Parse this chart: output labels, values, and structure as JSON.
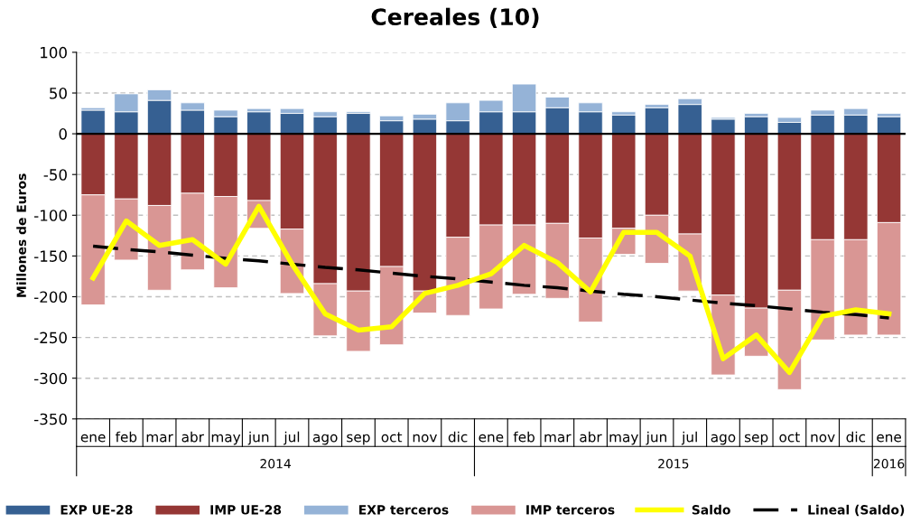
{
  "chart_data": {
    "type": "bar",
    "title": "Cereales (10)",
    "ylabel": "Millones de Euros",
    "categories": [
      "ene",
      "feb",
      "mar",
      "abr",
      "may",
      "jun",
      "jul",
      "ago",
      "sep",
      "oct",
      "nov",
      "dic",
      "ene",
      "feb",
      "mar",
      "abr",
      "may",
      "jun",
      "jul",
      "ago",
      "sep",
      "oct",
      "nov",
      "dic",
      "ene"
    ],
    "annotations": [
      "2014",
      "2015",
      "2016"
    ],
    "stacked": true,
    "ylim": [
      -350,
      100
    ],
    "yticks": [
      -350,
      -300,
      -250,
      -200,
      -150,
      -100,
      -50,
      0,
      50,
      100
    ],
    "grid": "y",
    "legend": "bottom",
    "series": [
      {
        "name": "EXP UE-28",
        "color": "#366092",
        "values": [
          29,
          27,
          41,
          29,
          21,
          27,
          25,
          21,
          25,
          16,
          18,
          16,
          27,
          27,
          32,
          27,
          23,
          32,
          36,
          18,
          21,
          14,
          23,
          23,
          21
        ]
      },
      {
        "name": "IMP UE-28",
        "color": "#953735",
        "values": [
          -75,
          -80,
          -88,
          -73,
          -77,
          -82,
          -117,
          -184,
          -193,
          -163,
          -193,
          -127,
          -112,
          -112,
          -110,
          -128,
          -116,
          -100,
          -123,
          -198,
          -214,
          -192,
          -130,
          -130,
          -109
        ]
      },
      {
        "name": "EXP terceros",
        "color": "#95b3d7",
        "values": [
          3,
          22,
          13,
          9,
          8,
          4,
          6,
          6,
          2,
          6,
          6,
          22,
          14,
          34,
          13,
          11,
          4,
          4,
          7,
          2,
          4,
          6,
          6,
          8,
          4
        ]
      },
      {
        "name": "IMP terceros",
        "color": "#d99694",
        "values": [
          -135,
          -75,
          -104,
          -94,
          -112,
          -34,
          -79,
          -64,
          -74,
          -96,
          -27,
          -96,
          -103,
          -85,
          -92,
          -103,
          -32,
          -59,
          -70,
          -98,
          -59,
          -122,
          -123,
          -117,
          -138
        ]
      },
      {
        "name": "Saldo",
        "type": "line",
        "color": "#ffff00",
        "line_style": "solid",
        "values": [
          -177,
          -107,
          -137,
          -130,
          -160,
          -89,
          -160,
          -221,
          -241,
          -237,
          -196,
          -186,
          -172,
          -137,
          -158,
          -194,
          -121,
          -121,
          -150,
          -276,
          -247,
          -293,
          -224,
          -216,
          -221
        ]
      },
      {
        "name": "Lineal (Saldo)",
        "type": "line",
        "color": "#000000",
        "line_style": "dashed",
        "values": [
          -138,
          -142,
          -145,
          -149,
          -153,
          -156,
          -160,
          -164,
          -167,
          -171,
          -175,
          -178,
          -182,
          -186,
          -189,
          -193,
          -197,
          -200,
          -204,
          -208,
          -211,
          -215,
          -219,
          -222,
          -226
        ]
      }
    ]
  }
}
